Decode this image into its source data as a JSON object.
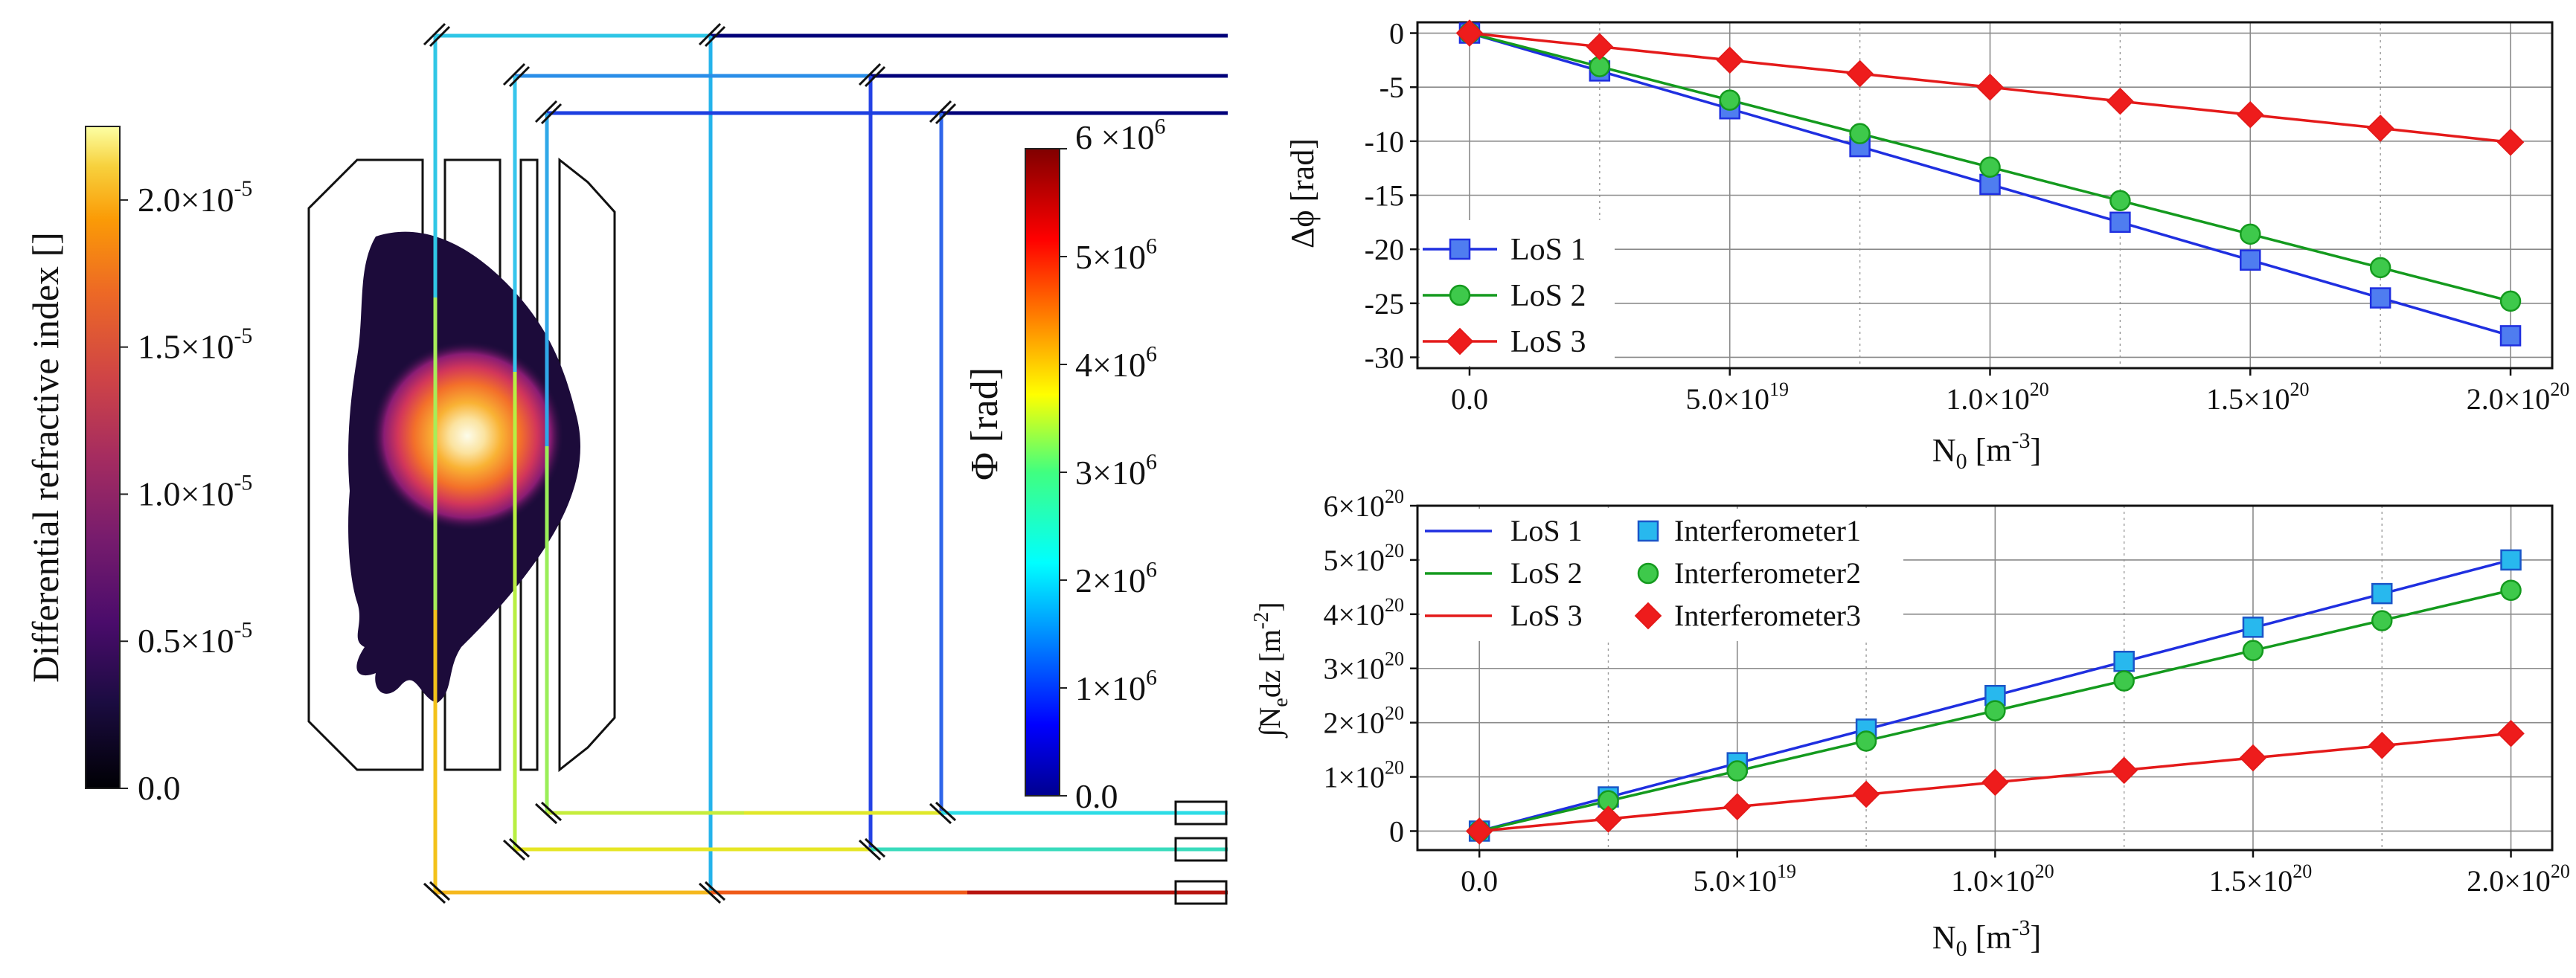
{
  "colorbar_refractive": {
    "label": "Differential refractive index []",
    "ticks": [
      {
        "value": 0.0,
        "mant": "0.0",
        "exp": ""
      },
      {
        "value": 0.5,
        "mant": "0.5×10",
        "exp": "-5"
      },
      {
        "value": 1.0,
        "mant": "1.0×10",
        "exp": "-5"
      },
      {
        "value": 1.5,
        "mant": "1.5×10",
        "exp": "-5"
      },
      {
        "value": 2.0,
        "mant": "2.0×10",
        "exp": "-5"
      }
    ],
    "range": [
      0,
      2.25
    ],
    "colormap": "inferno"
  },
  "colorbar_phase": {
    "label": "Φ [rad]",
    "ticks": [
      {
        "value": 0,
        "mant": "0.0",
        "exp": ""
      },
      {
        "value": 1,
        "mant": "1×10",
        "exp": "6"
      },
      {
        "value": 2,
        "mant": "2×10",
        "exp": "6"
      },
      {
        "value": 3,
        "mant": "3×10",
        "exp": "6"
      },
      {
        "value": 4,
        "mant": "4×10",
        "exp": "6"
      },
      {
        "value": 5,
        "mant": "5×10",
        "exp": "6"
      },
      {
        "value": 6,
        "mant": "6 ×10",
        "exp": "6"
      }
    ],
    "range": [
      0,
      6
    ],
    "colormap": "jet"
  },
  "chart_data": [
    {
      "type": "line",
      "ylabel": "Δϕ [rad]",
      "xlabel": {
        "main": "N",
        "sub": "0",
        "unit": " [m",
        "sup": "-3",
        "close": "]"
      },
      "xlim": [
        -0.1,
        2.08
      ],
      "ylim": [
        -31,
        1
      ],
      "xticks": [
        {
          "value": 0,
          "mant": "0.0",
          "exp": ""
        },
        {
          "value": 0.5,
          "mant": "5.0×10",
          "exp": "19"
        },
        {
          "value": 1.0,
          "mant": "1.0×10",
          "exp": "20"
        },
        {
          "value": 1.5,
          "mant": "1.5×10",
          "exp": "20"
        },
        {
          "value": 2.0,
          "mant": "2.0×10",
          "exp": "20"
        }
      ],
      "yticks": [
        {
          "value": 0,
          "label": "0"
        },
        {
          "value": -5,
          "label": "-5"
        },
        {
          "value": -10,
          "label": "-10"
        },
        {
          "value": -15,
          "label": "-15"
        },
        {
          "value": -20,
          "label": "-20"
        },
        {
          "value": -25,
          "label": "-25"
        },
        {
          "value": -30,
          "label": "-30"
        }
      ],
      "x": [
        0,
        0.25,
        0.5,
        0.75,
        1.0,
        1.25,
        1.5,
        1.75,
        2.0
      ],
      "series": [
        {
          "name": "LoS 1",
          "color": "#1f2fe0",
          "fill": "#4f7df0",
          "marker": "square",
          "values": [
            0,
            -3.5,
            -7.0,
            -10.5,
            -14.0,
            -17.5,
            -21.0,
            -24.5,
            -28.0
          ]
        },
        {
          "name": "LoS 2",
          "color": "#149a1e",
          "fill": "#3ec94b",
          "marker": "circle",
          "values": [
            0,
            -3.1,
            -6.2,
            -9.3,
            -12.4,
            -15.5,
            -18.6,
            -21.7,
            -24.8
          ]
        },
        {
          "name": "LoS 3",
          "color": "#e41a1a",
          "fill": "#ee1c1c",
          "marker": "diamond",
          "values": [
            0,
            -1.25,
            -2.5,
            -3.75,
            -5.0,
            -6.3,
            -7.55,
            -8.8,
            -10.1
          ]
        }
      ],
      "legend": "bottom-left"
    },
    {
      "type": "line",
      "ylabel": {
        "pre": "∫N",
        "sub": "e",
        "mid": "dz  [m",
        "sup": "-2",
        "close": "]"
      },
      "xlabel": {
        "main": "N",
        "sub": "0",
        "unit": " [m",
        "sup": "-3",
        "close": "]"
      },
      "xlim": [
        -0.12,
        2.08
      ],
      "ylim": [
        -0.35,
        6.0
      ],
      "xticks": [
        {
          "value": 0,
          "mant": "0.0",
          "exp": ""
        },
        {
          "value": 0.5,
          "mant": "5.0×10",
          "exp": "19"
        },
        {
          "value": 1.0,
          "mant": "1.0×10",
          "exp": "20"
        },
        {
          "value": 1.5,
          "mant": "1.5×10",
          "exp": "20"
        },
        {
          "value": 2.0,
          "mant": "2.0×10",
          "exp": "20"
        }
      ],
      "yticks": [
        {
          "value": 0,
          "mant": "0",
          "exp": ""
        },
        {
          "value": 1,
          "mant": "1×10",
          "exp": "20"
        },
        {
          "value": 2,
          "mant": "2×10",
          "exp": "20"
        },
        {
          "value": 3,
          "mant": "3×10",
          "exp": "20"
        },
        {
          "value": 4,
          "mant": "4×10",
          "exp": "20"
        },
        {
          "value": 5,
          "mant": "5×10",
          "exp": "20"
        },
        {
          "value": 6,
          "mant": "6×10",
          "exp": "20"
        }
      ],
      "x": [
        0,
        0.25,
        0.5,
        0.75,
        1.0,
        1.25,
        1.5,
        1.75,
        2.0
      ],
      "series": [
        {
          "name": "LoS 1",
          "color": "#1f2fe0",
          "values": [
            0,
            0.625,
            1.25,
            1.875,
            2.5,
            3.125,
            3.75,
            4.375,
            5.0
          ]
        },
        {
          "name": "LoS 2",
          "color": "#149a1e",
          "values": [
            0,
            0.555,
            1.11,
            1.665,
            2.22,
            2.775,
            3.33,
            3.885,
            4.44
          ]
        },
        {
          "name": "LoS 3",
          "color": "#e41a1a",
          "values": [
            0,
            0.225,
            0.45,
            0.675,
            0.9,
            1.125,
            1.35,
            1.575,
            1.8
          ]
        },
        {
          "name": "Interferometer1",
          "color": "#1a55c8",
          "fill": "#28b8ee",
          "marker": "square",
          "values": [
            0,
            0.63,
            1.26,
            1.88,
            2.5,
            3.13,
            3.76,
            4.38,
            5.0
          ]
        },
        {
          "name": "Interferometer2",
          "color": "#149a1e",
          "fill": "#3ec94b",
          "marker": "circle",
          "values": [
            0,
            0.56,
            1.11,
            1.66,
            2.22,
            2.77,
            3.33,
            3.88,
            4.44
          ]
        },
        {
          "name": "Interferometer3",
          "color": "#e41a1a",
          "fill": "#ee1c1c",
          "marker": "diamond",
          "values": [
            0,
            0.22,
            0.45,
            0.68,
            0.9,
            1.12,
            1.35,
            1.58,
            1.8
          ]
        }
      ],
      "legend": "top-left"
    }
  ]
}
